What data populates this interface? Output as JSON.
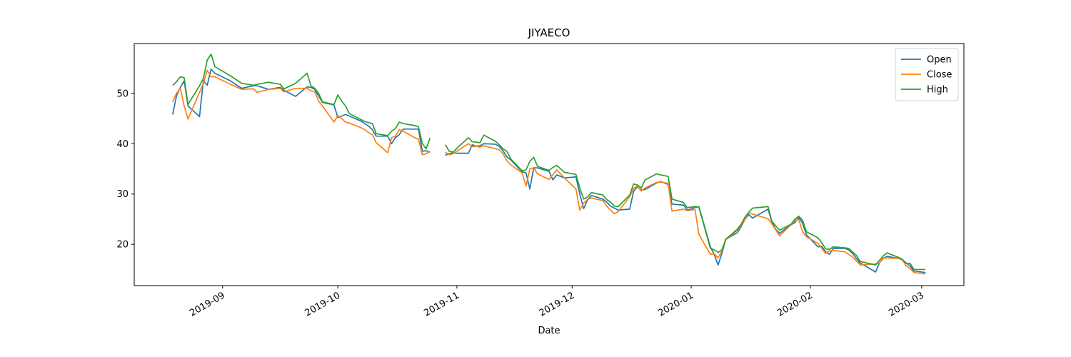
{
  "chart_data": {
    "type": "line",
    "title": "JIYAECO",
    "xlabel": "Date",
    "x": [
      "2019-08-19",
      "2019-08-20",
      "2019-08-21",
      "2019-08-22",
      "2019-08-23",
      "2019-08-26",
      "2019-08-27",
      "2019-08-28",
      "2019-08-29",
      "2019-08-30",
      "2019-09-03",
      "2019-09-06",
      "2019-09-09",
      "2019-09-10",
      "2019-09-13",
      "2019-09-16",
      "2019-09-17",
      "2019-09-20",
      "2019-09-23",
      "2019-09-24",
      "2019-09-25",
      "2019-09-26",
      "2019-09-27",
      "2019-09-30",
      "2019-10-01",
      "2019-10-02",
      "2019-10-03",
      "2019-10-04",
      "2019-10-07",
      "2019-10-08",
      "2019-10-09",
      "2019-10-10",
      "2019-10-11",
      "2019-10-14",
      "2019-10-15",
      "2019-10-16",
      "2019-10-17",
      "2019-10-18",
      "2019-10-21",
      "2019-10-22",
      "2019-10-23",
      "2019-10-24",
      "2019-10-25",
      "2019-10-28",
      "2019-10-29",
      "2019-10-30",
      "2019-10-31",
      "2019-11-01",
      "2019-11-04",
      "2019-11-05",
      "2019-11-06",
      "2019-11-07",
      "2019-11-08",
      "2019-11-11",
      "2019-11-12",
      "2019-11-13",
      "2019-11-14",
      "2019-11-15",
      "2019-11-18",
      "2019-11-19",
      "2019-11-20",
      "2019-11-21",
      "2019-11-22",
      "2019-11-25",
      "2019-11-26",
      "2019-11-27",
      "2019-11-29",
      "2019-12-02",
      "2019-12-03",
      "2019-12-04",
      "2019-12-05",
      "2019-12-06",
      "2019-12-09",
      "2019-12-10",
      "2019-12-11",
      "2019-12-12",
      "2019-12-13",
      "2019-12-16",
      "2019-12-17",
      "2019-12-18",
      "2019-12-19",
      "2019-12-20",
      "2019-12-23",
      "2019-12-24",
      "2019-12-26",
      "2019-12-27",
      "2019-12-30",
      "2019-12-31",
      "2020-01-02",
      "2020-01-03",
      "2020-01-06",
      "2020-01-07",
      "2020-01-08",
      "2020-01-09",
      "2020-01-10",
      "2020-01-13",
      "2020-01-14",
      "2020-01-15",
      "2020-01-16",
      "2020-01-17",
      "2020-01-21",
      "2020-01-22",
      "2020-01-23",
      "2020-01-24",
      "2020-01-27",
      "2020-01-28",
      "2020-01-29",
      "2020-01-30",
      "2020-01-31",
      "2020-02-03",
      "2020-02-04",
      "2020-02-05",
      "2020-02-06",
      "2020-02-07",
      "2020-02-10",
      "2020-02-11",
      "2020-02-12",
      "2020-02-13",
      "2020-02-14",
      "2020-02-18",
      "2020-02-19",
      "2020-02-20",
      "2020-02-21",
      "2020-02-24",
      "2020-02-25",
      "2020-02-26",
      "2020-02-27",
      "2020-02-28",
      "2020-03-02"
    ],
    "series": [
      {
        "name": "Open",
        "color": "#1f77b4",
        "values": [
          45.8,
          49.5,
          51.2,
          52.5,
          47.5,
          45.4,
          52.5,
          51.6,
          54.8,
          54.0,
          52.5,
          51.0,
          51.5,
          51.5,
          50.8,
          51.2,
          50.6,
          49.4,
          51.3,
          51.2,
          50.8,
          49.5,
          48.2,
          47.7,
          45.2,
          45.5,
          45.8,
          45.5,
          44.5,
          44.0,
          43.5,
          42.8,
          41.5,
          41.5,
          40.0,
          41.2,
          41.8,
          42.9,
          42.9,
          42.9,
          38.5,
          38.6,
          38.3,
          null,
          37.7,
          38.0,
          38.2,
          38.1,
          38.1,
          39.8,
          39.5,
          39.6,
          40.0,
          39.9,
          39.5,
          38.6,
          37.4,
          36.8,
          34.4,
          34.2,
          31.0,
          35.2,
          35.2,
          34.5,
          32.8,
          33.8,
          33.2,
          33.4,
          30.0,
          27.1,
          28.8,
          29.7,
          29.0,
          28.4,
          27.6,
          27.2,
          26.8,
          27.0,
          30.5,
          31.5,
          30.8,
          30.9,
          32.2,
          32.5,
          31.9,
          28.0,
          27.8,
          26.8,
          27.3,
          27.5,
          19.5,
          18.0,
          15.9,
          18.2,
          21.0,
          22.3,
          23.5,
          25.0,
          25.9,
          25.2,
          27.0,
          24.5,
          23.0,
          22.2,
          23.9,
          24.3,
          25.4,
          24.2,
          21.9,
          19.5,
          19.6,
          18.5,
          18.0,
          19.2,
          19.2,
          18.9,
          18.2,
          17.2,
          16.3,
          14.5,
          16.3,
          17.2,
          17.6,
          17.2,
          16.9,
          16.3,
          15.7,
          14.7,
          14.4
        ]
      },
      {
        "name": "Close",
        "color": "#ff7f0e",
        "values": [
          48.3,
          50.0,
          51.0,
          47.5,
          44.9,
          50.2,
          52.0,
          54.6,
          53.3,
          53.3,
          51.8,
          50.8,
          50.9,
          50.2,
          50.8,
          51.0,
          50.3,
          51.0,
          51.0,
          50.5,
          50.3,
          48.5,
          47.5,
          44.3,
          45.6,
          45.0,
          44.3,
          44.1,
          43.2,
          42.8,
          42.2,
          41.8,
          40.2,
          38.2,
          41.2,
          41.5,
          42.8,
          42.5,
          41.2,
          40.9,
          37.8,
          38.0,
          38.5,
          null,
          38.3,
          37.8,
          38.0,
          38.5,
          40.0,
          39.4,
          39.5,
          39.3,
          39.6,
          39.0,
          38.8,
          38.0,
          36.6,
          35.8,
          34.2,
          31.6,
          35.0,
          35.2,
          34.0,
          32.9,
          33.8,
          34.8,
          33.2,
          31.0,
          26.8,
          28.2,
          28.9,
          29.2,
          28.7,
          27.6,
          26.8,
          26.1,
          26.5,
          29.5,
          31.1,
          31.6,
          30.6,
          31.2,
          32.3,
          32.4,
          32.1,
          26.6,
          27.0,
          26.7,
          26.9,
          22.0,
          18.0,
          18.1,
          17.3,
          18.7,
          20.9,
          22.8,
          23.8,
          25.0,
          26.3,
          26.0,
          25.1,
          24.1,
          22.9,
          21.7,
          23.9,
          24.7,
          25.0,
          22.5,
          21.5,
          20.2,
          19.2,
          18.2,
          18.7,
          18.8,
          18.5,
          18.0,
          17.5,
          16.7,
          15.9,
          16.1,
          16.3,
          17.3,
          17.3,
          17.2,
          16.9,
          15.7,
          15.2,
          14.4,
          14.1
        ]
      },
      {
        "name": "High",
        "color": "#2ca02c",
        "values": [
          51.6,
          52.3,
          53.3,
          53.1,
          47.8,
          51.5,
          53.0,
          56.6,
          57.8,
          55.3,
          53.5,
          52.0,
          51.6,
          51.8,
          52.2,
          51.8,
          50.9,
          52.0,
          54.0,
          51.5,
          51.0,
          50.0,
          48.3,
          47.8,
          49.7,
          48.5,
          47.5,
          46.0,
          44.8,
          44.4,
          44.2,
          44.0,
          42.0,
          41.6,
          42.5,
          43.0,
          44.3,
          44.0,
          43.6,
          43.4,
          40.0,
          39.0,
          41.1,
          null,
          39.8,
          38.5,
          38.3,
          39.1,
          41.2,
          40.4,
          40.3,
          40.2,
          41.7,
          40.5,
          39.8,
          39.0,
          38.5,
          37.0,
          34.6,
          34.8,
          36.5,
          37.3,
          35.5,
          34.7,
          35.3,
          35.7,
          34.3,
          33.9,
          31.2,
          29.0,
          29.4,
          30.3,
          29.8,
          28.9,
          28.4,
          27.6,
          27.5,
          29.8,
          32.0,
          31.8,
          31.2,
          32.8,
          34.0,
          33.8,
          33.5,
          29.0,
          28.3,
          27.3,
          27.5,
          27.4,
          19.2,
          18.9,
          18.4,
          18.9,
          21.0,
          23.0,
          24.0,
          25.4,
          26.4,
          27.2,
          27.5,
          24.6,
          23.7,
          22.8,
          24.0,
          25.0,
          25.6,
          24.8,
          22.5,
          21.3,
          20.3,
          19.1,
          19.0,
          19.5,
          19.3,
          19.2,
          18.5,
          17.8,
          16.6,
          15.9,
          16.8,
          17.7,
          18.3,
          17.4,
          17.0,
          16.2,
          16.2,
          15.0,
          15.0
        ]
      }
    ],
    "xlim": [
      "2019-08-09",
      "2020-03-12"
    ],
    "xticks": [
      {
        "value": "2019-09-01",
        "label": "2019-09"
      },
      {
        "value": "2019-10-01",
        "label": "2019-10"
      },
      {
        "value": "2019-11-01",
        "label": "2019-11"
      },
      {
        "value": "2019-12-01",
        "label": "2019-12"
      },
      {
        "value": "2020-01-01",
        "label": "2020-01"
      },
      {
        "value": "2020-02-01",
        "label": "2020-02"
      },
      {
        "value": "2020-03-01",
        "label": "2020-03"
      }
    ],
    "ylim": [
      11.8,
      59.9
    ],
    "yticks": [
      20,
      30,
      40,
      50
    ],
    "legend": "upper right",
    "grid": false
  }
}
